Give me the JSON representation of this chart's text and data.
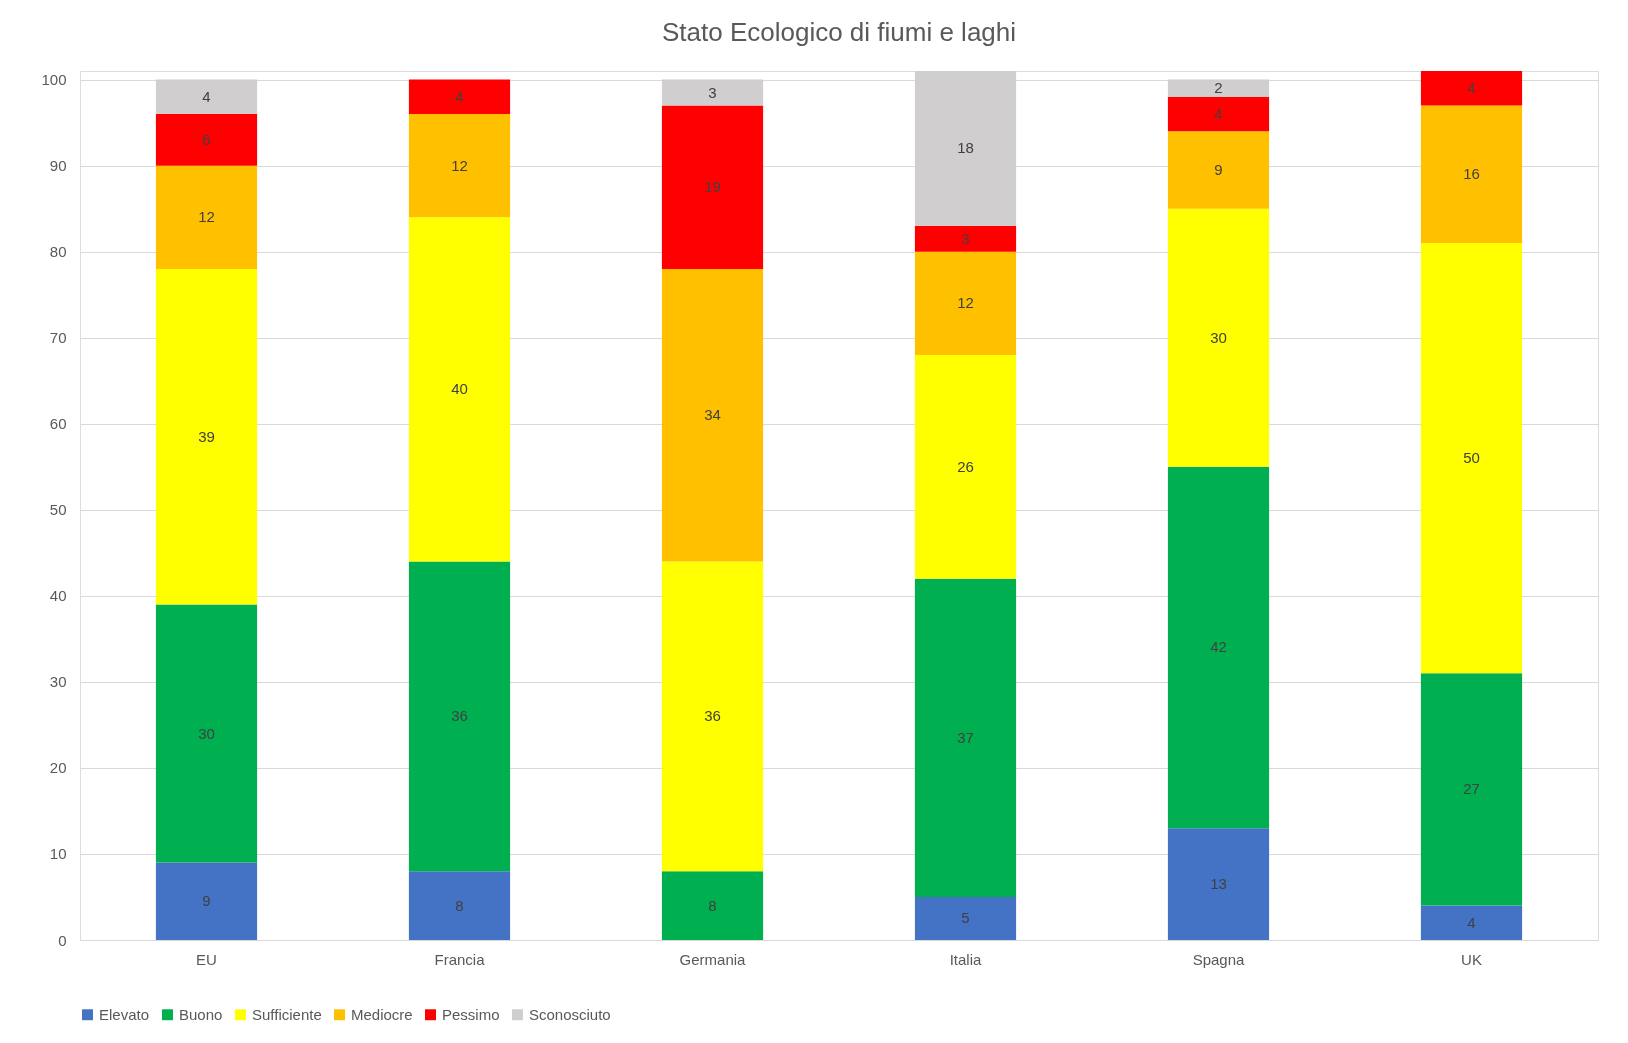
{
  "chart_data": {
    "type": "bar",
    "stacked": true,
    "title": "Stato Ecologico di fiumi e laghi",
    "categories": [
      "EU",
      "Francia",
      "Germania",
      "Italia",
      "Spagna",
      "UK"
    ],
    "series": [
      {
        "name": "Elevato",
        "color": "#4472c4",
        "values": [
          9,
          8,
          null,
          5,
          13,
          4
        ]
      },
      {
        "name": "Buono",
        "color": "#00b050",
        "values": [
          30,
          36,
          8,
          37,
          42,
          27
        ]
      },
      {
        "name": "Sufficiente",
        "color": "#ffff00",
        "values": [
          39,
          40,
          36,
          26,
          30,
          50
        ]
      },
      {
        "name": "Mediocre",
        "color": "#ffc000",
        "values": [
          12,
          12,
          34,
          12,
          9,
          16
        ]
      },
      {
        "name": "Pessimo",
        "color": "#ff0000",
        "values": [
          6,
          4,
          19,
          3,
          4,
          4
        ]
      },
      {
        "name": "Sconosciuto",
        "color": "#d0cece",
        "values": [
          4,
          null,
          3,
          18,
          2,
          null
        ]
      }
    ],
    "ylim": [
      0,
      101
    ],
    "yticks": [
      0,
      10,
      20,
      30,
      40,
      50,
      60,
      70,
      80,
      90,
      100
    ],
    "grid": "y",
    "legend": "bottom",
    "data_labels": true
  }
}
